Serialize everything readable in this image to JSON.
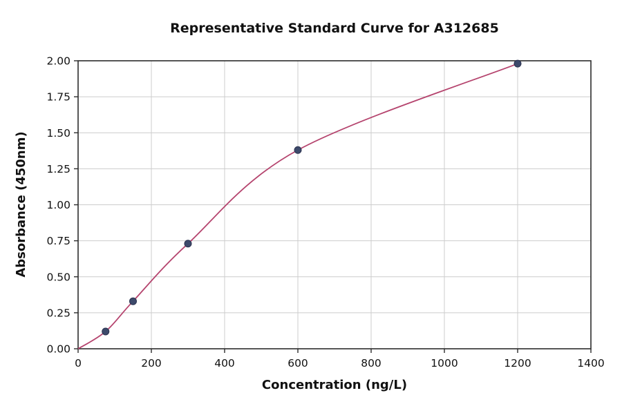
{
  "figure": {
    "title": "Representative Standard Curve for A312685",
    "xlabel": "Concentration (ng/L)",
    "ylabel": "Absorbance (450nm)"
  },
  "chart_data": {
    "type": "line",
    "title": "Representative Standard Curve for A312685",
    "xlabel": "Concentration (ng/L)",
    "ylabel": "Absorbance (450nm)",
    "xlim": [
      0,
      1400
    ],
    "ylim": [
      0,
      2.0
    ],
    "xticks": [
      0,
      200,
      400,
      600,
      800,
      1000,
      1200,
      1400
    ],
    "yticks": [
      0.0,
      0.25,
      0.5,
      0.75,
      1.0,
      1.25,
      1.5,
      1.75,
      2.0
    ],
    "grid": true,
    "legend": "none",
    "curve_start": {
      "x": 0,
      "y": 0.0
    },
    "points": [
      {
        "x": 75,
        "y": 0.12
      },
      {
        "x": 150,
        "y": 0.33
      },
      {
        "x": 300,
        "y": 0.73
      },
      {
        "x": 600,
        "y": 1.38
      },
      {
        "x": 1200,
        "y": 1.98
      }
    ],
    "colors": {
      "curve": "#b5446e",
      "point_fill": "#3d4a6b",
      "point_edge": "#2b3350",
      "grid": "#cccccc",
      "axis": "#2b2b2b",
      "background": "#ffffff"
    }
  }
}
